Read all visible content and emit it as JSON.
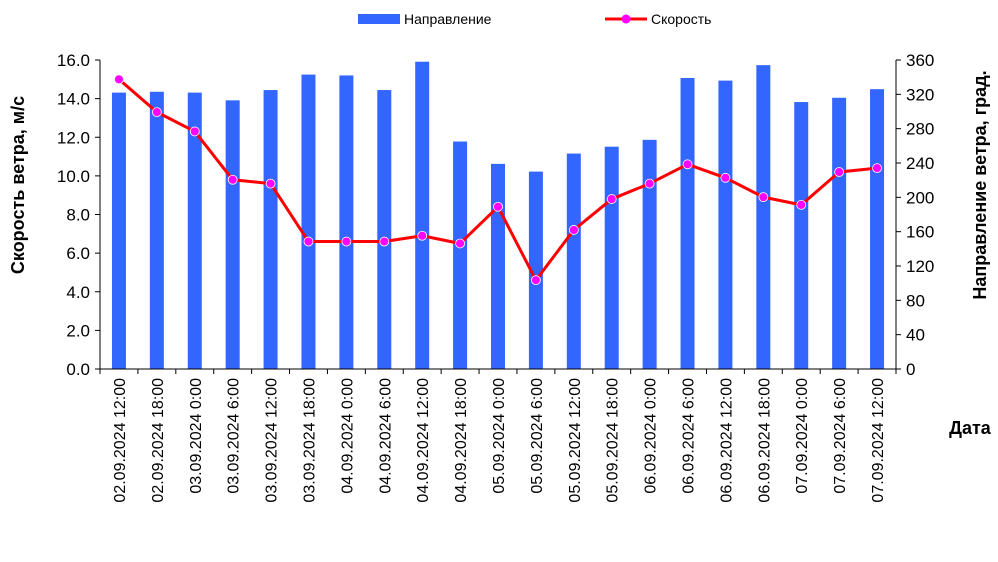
{
  "chart_data": {
    "type": "bar",
    "categories": [
      "02.09.2024 12:00",
      "02.09.2024 18:00",
      "03.09.2024 0:00",
      "03.09.2024 6:00",
      "03.09.2024 12:00",
      "03.09.2024 18:00",
      "04.09.2024 0:00",
      "04.09.2024 6:00",
      "04.09.2024 12:00",
      "04.09.2024 18:00",
      "05.09.2024 0:00",
      "05.09.2024 6:00",
      "05.09.2024 12:00",
      "05.09.2024 18:00",
      "06.09.2024 0:00",
      "06.09.2024 6:00",
      "06.09.2024 12:00",
      "06.09.2024 18:00",
      "07.09.2024 0:00",
      "07.09.2024 6:00",
      "07.09.2024 12:00"
    ],
    "series": [
      {
        "name": "Направление",
        "kind": "bar",
        "axis": "right",
        "color": "#3366ff",
        "values": [
          322,
          323,
          322,
          313,
          325,
          343,
          342,
          325,
          358,
          265,
          239,
          230,
          251,
          259,
          267,
          339,
          336,
          354,
          311,
          316,
          326
        ]
      },
      {
        "name": "Скорость",
        "kind": "line",
        "axis": "left",
        "color": "#ff0000",
        "marker_color": "#ff00ff",
        "values": [
          15.0,
          13.3,
          12.3,
          9.8,
          9.6,
          6.6,
          6.6,
          6.6,
          6.9,
          6.5,
          8.4,
          4.6,
          7.2,
          8.8,
          9.6,
          10.6,
          9.9,
          8.9,
          8.5,
          10.2,
          10.4
        ]
      }
    ],
    "ylabel": "Скорость ветра, м/с",
    "y2label": "Направление ветра, град.",
    "xlabel": "Дата",
    "ylim": [
      0,
      16
    ],
    "y2lim": [
      0,
      360
    ],
    "yticks": [
      "0.0",
      "2.0",
      "4.0",
      "6.0",
      "8.0",
      "10.0",
      "12.0",
      "14.0",
      "16.0"
    ],
    "y2ticks": [
      "0",
      "40",
      "80",
      "120",
      "160",
      "200",
      "240",
      "280",
      "320",
      "360"
    ],
    "grid": false,
    "legend": "top"
  }
}
